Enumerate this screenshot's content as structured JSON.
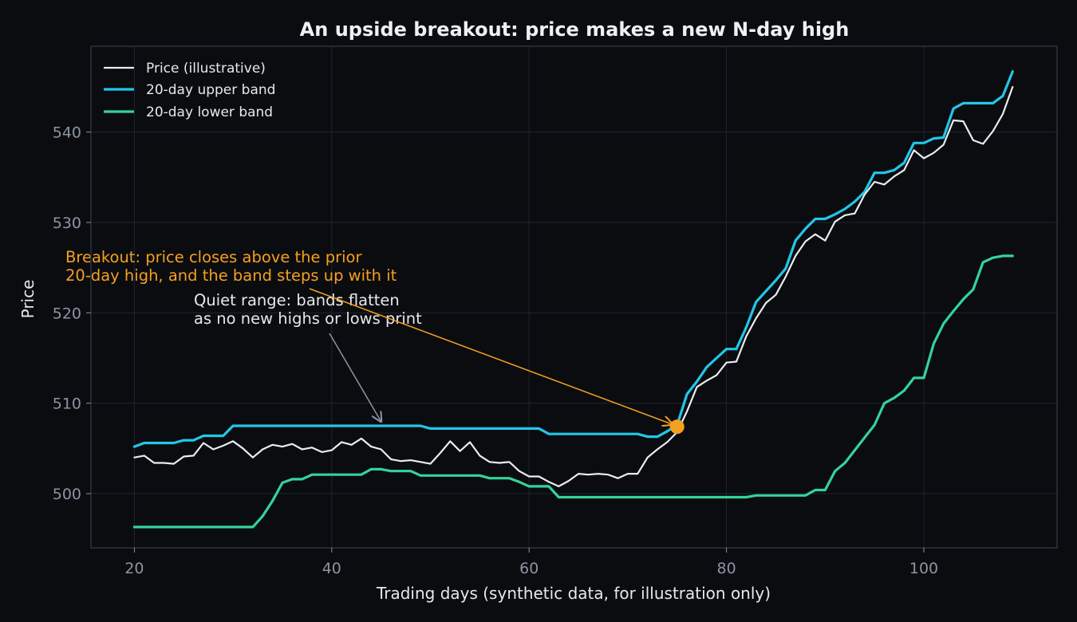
{
  "chart_data": {
    "type": "line",
    "title": "An upside breakout: price makes a new N-day high",
    "xlabel": "Trading days (synthetic data, for illustration only)",
    "ylabel": "Price",
    "xlim": [
      15.6,
      113.5
    ],
    "ylim": [
      494.0,
      549.5
    ],
    "xticks": [
      20,
      40,
      60,
      80,
      100
    ],
    "yticks": [
      500,
      510,
      520,
      530,
      540
    ],
    "grid": true,
    "legend_position": "top-left",
    "x": [
      20,
      21,
      22,
      23,
      24,
      25,
      26,
      27,
      28,
      29,
      30,
      31,
      32,
      33,
      34,
      35,
      36,
      37,
      38,
      39,
      40,
      41,
      42,
      43,
      44,
      45,
      46,
      47,
      48,
      49,
      50,
      51,
      52,
      53,
      54,
      55,
      56,
      57,
      58,
      59,
      60,
      61,
      62,
      63,
      64,
      65,
      66,
      67,
      68,
      69,
      70,
      71,
      72,
      73,
      74,
      75,
      76,
      77,
      78,
      79,
      80,
      81,
      82,
      83,
      84,
      85,
      86,
      87,
      88,
      89,
      90,
      91,
      92,
      93,
      94,
      95,
      96,
      97,
      98,
      99,
      100,
      101,
      102,
      103,
      104,
      105,
      106,
      107,
      108,
      109
    ],
    "series": [
      {
        "name": "Price (illustrative)",
        "color": "#e9ecf0",
        "values": [
          504.0,
          504.2,
          503.4,
          503.4,
          503.3,
          504.1,
          504.2,
          505.6,
          504.9,
          505.3,
          505.8,
          505.0,
          504.0,
          504.9,
          505.4,
          505.2,
          505.5,
          504.9,
          505.1,
          504.6,
          504.8,
          505.7,
          505.4,
          506.1,
          505.2,
          504.9,
          503.8,
          503.6,
          503.7,
          503.5,
          503.3,
          504.5,
          505.8,
          504.7,
          505.7,
          504.2,
          503.5,
          503.4,
          503.5,
          502.5,
          501.9,
          501.9,
          501.3,
          500.8,
          501.4,
          502.2,
          502.1,
          502.2,
          502.1,
          501.7,
          502.2,
          502.2,
          504.0,
          504.9,
          505.7,
          506.8,
          509.1,
          511.8,
          512.5,
          513.1,
          514.5,
          514.6,
          517.4,
          519.4,
          521.1,
          522.0,
          524.0,
          526.3,
          527.9,
          528.7,
          528.0,
          530.1,
          530.8,
          531.0,
          533.1,
          534.5,
          534.2,
          535.1,
          535.8,
          538.0,
          537.1,
          537.7,
          538.6,
          541.3,
          541.2,
          539.1,
          538.7,
          540.1,
          542.0,
          545.0
        ]
      },
      {
        "name": "20-day upper band",
        "color": "#22c7e8",
        "values": [
          505.2,
          505.6,
          505.6,
          505.6,
          505.6,
          505.9,
          505.9,
          506.4,
          506.4,
          506.4,
          507.5,
          507.5,
          507.5,
          507.5,
          507.5,
          507.5,
          507.5,
          507.5,
          507.5,
          507.5,
          507.5,
          507.5,
          507.5,
          507.5,
          507.5,
          507.5,
          507.5,
          507.5,
          507.5,
          507.5,
          507.2,
          507.2,
          507.2,
          507.2,
          507.2,
          507.2,
          507.2,
          507.2,
          507.2,
          507.2,
          507.2,
          507.2,
          506.6,
          506.6,
          506.6,
          506.6,
          506.6,
          506.6,
          506.6,
          506.6,
          506.6,
          506.6,
          506.3,
          506.3,
          506.9,
          507.6,
          511.0,
          512.4,
          514.0,
          515.0,
          516.0,
          516.0,
          518.4,
          521.2,
          522.4,
          523.6,
          524.9,
          528.0,
          529.3,
          530.4,
          530.4,
          530.9,
          531.5,
          532.3,
          533.4,
          535.5,
          535.5,
          535.8,
          536.6,
          538.8,
          538.8,
          539.3,
          539.4,
          542.6,
          543.2,
          543.2,
          543.2,
          543.2,
          544.0,
          546.7
        ]
      },
      {
        "name": "20-day lower band",
        "color": "#34d399",
        "values": [
          496.3,
          496.3,
          496.3,
          496.3,
          496.3,
          496.3,
          496.3,
          496.3,
          496.3,
          496.3,
          496.3,
          496.3,
          496.3,
          497.5,
          499.2,
          501.2,
          501.6,
          501.6,
          502.1,
          502.1,
          502.1,
          502.1,
          502.1,
          502.1,
          502.7,
          502.7,
          502.5,
          502.5,
          502.5,
          502.0,
          502.0,
          502.0,
          502.0,
          502.0,
          502.0,
          502.0,
          501.7,
          501.7,
          501.7,
          501.3,
          500.8,
          500.8,
          500.8,
          499.6,
          499.6,
          499.6,
          499.6,
          499.6,
          499.6,
          499.6,
          499.6,
          499.6,
          499.6,
          499.6,
          499.6,
          499.6,
          499.6,
          499.6,
          499.6,
          499.6,
          499.6,
          499.6,
          499.6,
          499.8,
          499.8,
          499.8,
          499.8,
          499.8,
          499.8,
          500.4,
          500.4,
          502.5,
          503.4,
          504.8,
          506.2,
          507.6,
          510.0,
          510.6,
          511.4,
          512.8,
          512.8,
          516.6,
          518.8,
          520.2,
          521.5,
          522.6,
          525.6,
          526.1,
          526.3,
          526.3
        ]
      }
    ],
    "breakout_point": {
      "x": 75,
      "y": 507.4
    },
    "annotations": [
      {
        "text_lines": [
          "Breakout: price closes above the prior",
          "20-day high, and the band steps up with it"
        ],
        "color": "#f5a020",
        "arrow_to": {
          "x": 75,
          "y": 507.4
        }
      },
      {
        "text_lines": [
          "Quiet range: bands flatten",
          "as no new highs or lows print"
        ],
        "color": "#e6e8eb",
        "arrow_to": {
          "x": 45,
          "y": 507.8
        }
      }
    ],
    "colors": {
      "background": "#0b0c10",
      "plot_background": "#0b0c10",
      "grid": "#1c2530",
      "frame": "#2a3340",
      "breakout_marker": "#f5a020",
      "quiet_arrow": "#8b95a3"
    }
  }
}
